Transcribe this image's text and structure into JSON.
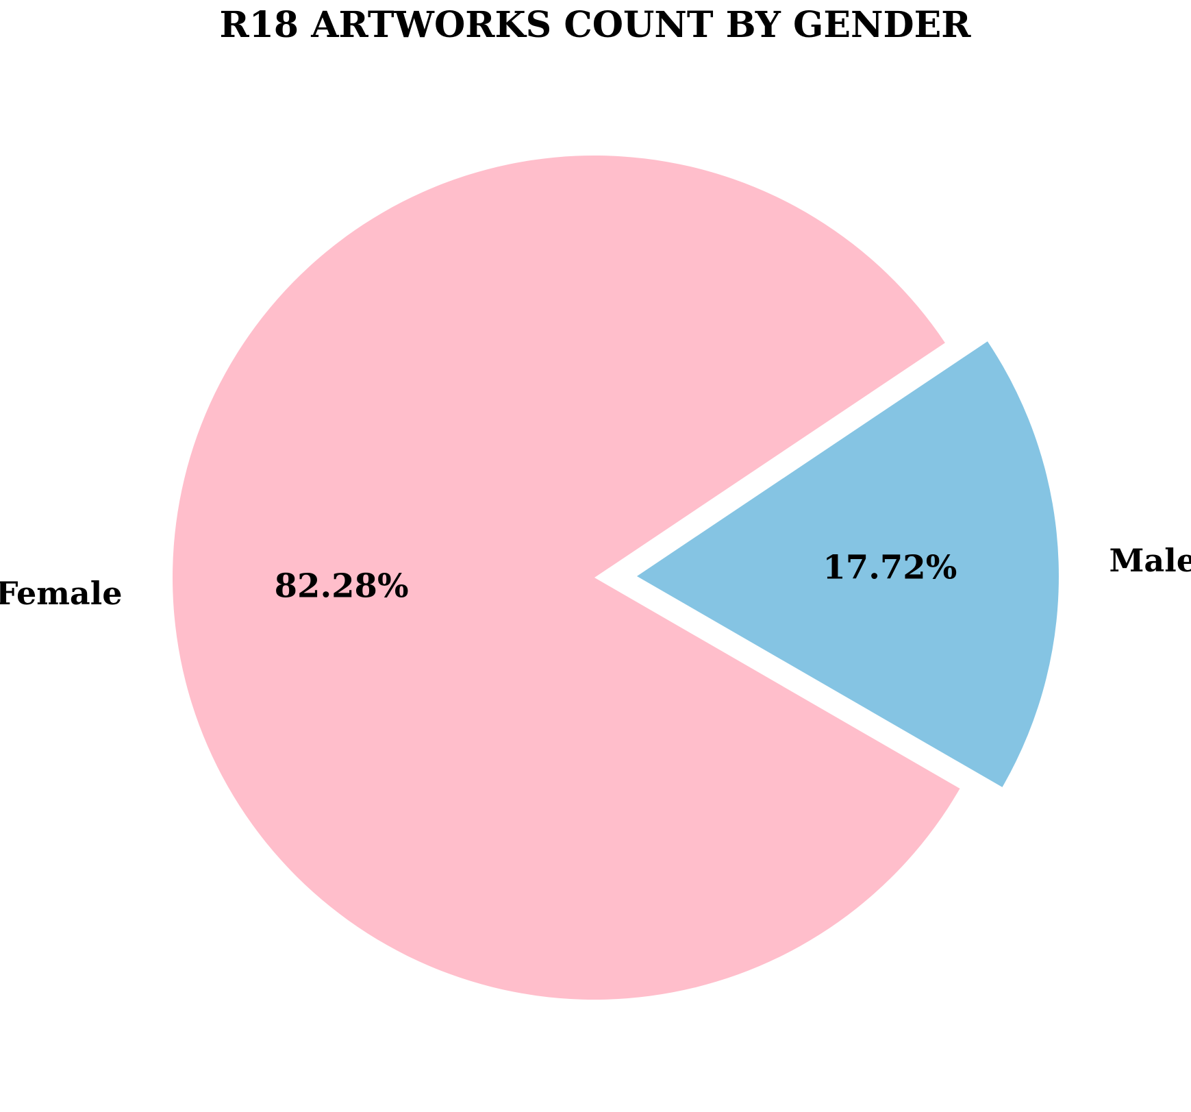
{
  "chart_data": {
    "type": "pie",
    "title": "R18 ARTWORKS COUNT BY GENDER",
    "categories": [
      "Male",
      "Female"
    ],
    "values": [
      17.72,
      82.28
    ],
    "value_labels": [
      "17.72%",
      "82.28%"
    ],
    "colors": [
      "#85c4e3",
      "#ffbecb"
    ],
    "exploded": [
      true,
      false
    ],
    "legend": "none"
  }
}
